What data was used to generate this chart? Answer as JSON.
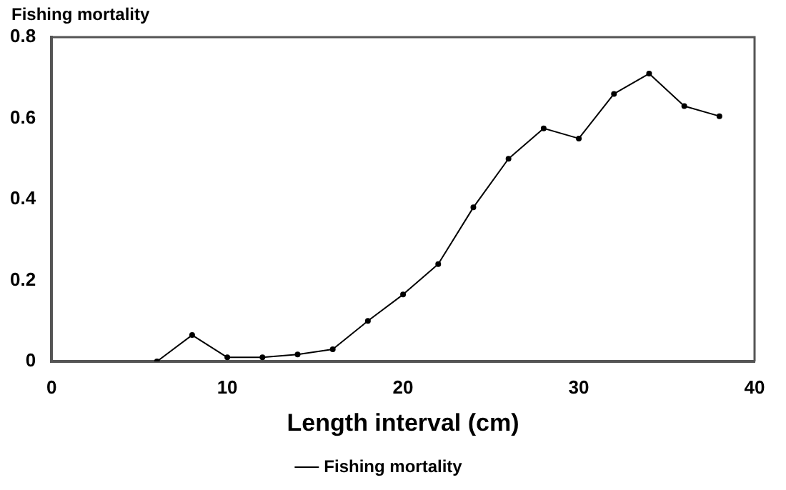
{
  "chart_data": {
    "type": "line",
    "ylabel": "Fishing mortality",
    "xlabel": "Length interval (cm)",
    "x": [
      6,
      8,
      10,
      12,
      14,
      16,
      18,
      20,
      22,
      24,
      26,
      28,
      30,
      32,
      34,
      36,
      38
    ],
    "series": [
      {
        "name": "Fishing mortality",
        "color": "#000000",
        "values": [
          0,
          0.065,
          0.01,
          0.01,
          0.017,
          0.03,
          0.1,
          0.165,
          0.24,
          0.38,
          0.5,
          0.575,
          0.55,
          0.66,
          0.71,
          0.63,
          0.605
        ]
      }
    ],
    "xlim": [
      0,
      40
    ],
    "xticks": [
      0,
      10,
      20,
      30,
      40
    ],
    "ylim": [
      0,
      0.8
    ],
    "yticks": [
      0,
      0.2,
      0.4,
      0.6,
      0.8
    ],
    "legend": "bottom",
    "marker": "circle",
    "line_style": "solid",
    "grid": false
  }
}
